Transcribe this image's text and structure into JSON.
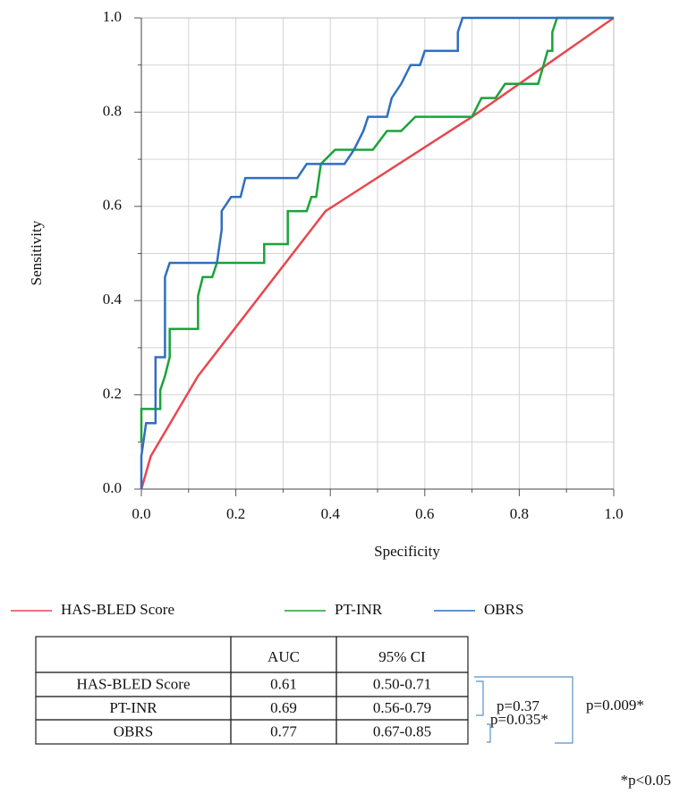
{
  "chart_data": {
    "type": "line",
    "xlabel": "Specificity",
    "ylabel": "Sensitivity",
    "xlim": [
      0,
      1
    ],
    "ylim": [
      0,
      1
    ],
    "xticks": [
      {
        "value": 0,
        "label": "0.0"
      },
      0.2,
      0.4,
      0.6,
      0.8,
      {
        "value": 1,
        "label": "1.0"
      }
    ],
    "yticks": [
      {
        "value": 0,
        "label": "0.0"
      },
      0.2,
      0.4,
      0.6,
      0.8,
      {
        "value": 1,
        "label": "1.0"
      }
    ],
    "xminor": [
      0.1,
      0.3,
      0.5,
      0.7,
      0.9
    ],
    "yminor": [
      0.1,
      0.3,
      0.5,
      0.7,
      0.9
    ],
    "grid": true,
    "series": [
      {
        "name": "HAS-BLED Score",
        "color": "#e8474f",
        "x": [
          0,
          0.02,
          0.12,
          0.39,
          0.7,
          1
        ],
        "values": [
          0,
          0.07,
          0.24,
          0.59,
          0.79,
          1
        ]
      },
      {
        "name": "PT-INR",
        "color": "#1aa33a",
        "x": [
          0,
          0,
          0.04,
          0.04,
          0.05,
          0.06,
          0.06,
          0.12,
          0.12,
          0.13,
          0.15,
          0.16,
          0.26,
          0.26,
          0.31,
          0.31,
          0.35,
          0.36,
          0.37,
          0.38,
          0.41,
          0.49,
          0.52,
          0.55,
          0.58,
          0.7,
          0.72,
          0.75,
          0.77,
          0.84,
          0.86,
          0.87,
          0.87,
          0.88,
          1
        ],
        "values": [
          0.1,
          0.17,
          0.17,
          0.21,
          0.24,
          0.28,
          0.34,
          0.34,
          0.41,
          0.45,
          0.45,
          0.48,
          0.48,
          0.52,
          0.52,
          0.59,
          0.59,
          0.62,
          0.62,
          0.69,
          0.72,
          0.72,
          0.76,
          0.76,
          0.79,
          0.79,
          0.83,
          0.83,
          0.86,
          0.86,
          0.93,
          0.93,
          0.97,
          1,
          1
        ]
      },
      {
        "name": "OBRS",
        "color": "#2f6fc0",
        "x": [
          0,
          0,
          0.01,
          0.03,
          0.03,
          0.05,
          0.05,
          0.06,
          0.16,
          0.17,
          0.17,
          0.19,
          0.21,
          0.22,
          0.33,
          0.35,
          0.43,
          0.45,
          0.47,
          0.48,
          0.52,
          0.53,
          0.55,
          0.57,
          0.59,
          0.6,
          0.67,
          0.67,
          0.68,
          1
        ],
        "values": [
          0,
          0.07,
          0.14,
          0.14,
          0.28,
          0.28,
          0.45,
          0.48,
          0.48,
          0.55,
          0.59,
          0.62,
          0.62,
          0.66,
          0.66,
          0.69,
          0.69,
          0.72,
          0.76,
          0.79,
          0.79,
          0.83,
          0.86,
          0.9,
          0.9,
          0.93,
          0.93,
          0.97,
          1,
          1
        ]
      }
    ]
  },
  "table": {
    "header": [
      "AUC",
      "95% CI"
    ],
    "rows": [
      [
        "HAS-BLED Score",
        0.61,
        "0.50-0.71"
      ],
      [
        "PT-INR",
        0.69,
        "0.56-0.79"
      ],
      [
        "OBRS",
        0.77,
        "0.67-0.85"
      ]
    ]
  },
  "annotations": [
    "p=0.37",
    "p=0.035*",
    "p=0.009*",
    "*p<0.05"
  ]
}
